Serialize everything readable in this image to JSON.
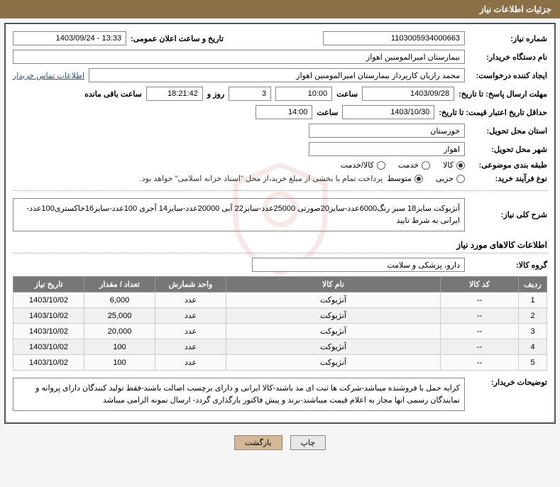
{
  "header": {
    "title": "جزئیات اطلاعات نیاز"
  },
  "fields": {
    "need_number": {
      "label": "شماره نیاز:",
      "value": "1103005934000663"
    },
    "announce_date": {
      "label": "تاریخ و ساعت اعلان عمومی:",
      "value": "13:33 - 1403/09/24"
    },
    "buyer_device": {
      "label": "نام دستگاه خریدار:",
      "value": "بیمارستان امیرالمومنین اهواز"
    },
    "requester": {
      "label": "ایجاد کننده درخواست:",
      "value": "محمد رازیان کارپرداز بیمارستان امیرالمومنین اهواز"
    },
    "contact_link": "اطلاعات تماس خریدار",
    "response_deadline": {
      "label": "مهلت ارسال پاسخ: تا تاریخ:",
      "date": "1403/09/28",
      "time_label": "ساعت",
      "time": "10:00",
      "days": "3",
      "days_label": "روز و",
      "hours": "18:21:42",
      "remaining_label": "ساعت باقی مانده"
    },
    "price_validity": {
      "label": "حداقل تاریخ اعتبار قیمت: تا تاریخ:",
      "date": "1403/10/30",
      "time_label": "ساعت",
      "time": "14:00"
    },
    "delivery_province": {
      "label": "استان محل تحویل:",
      "value": "خوزستان"
    },
    "delivery_city": {
      "label": "شهر محل تحویل:",
      "value": "اهواز"
    },
    "subject_class": {
      "label": "طبقه بندی موضوعی:",
      "options": [
        "کالا",
        "خدمت",
        "کالا/خدمت"
      ],
      "selected": 0
    },
    "purchase_type": {
      "label": "نوع فرآیند خرید:",
      "options": [
        "جزیی",
        "متوسط"
      ],
      "selected": 1,
      "note": "پرداخت تمام یا بخشی از مبلغ خرید،از محل \"اسناد خزانه اسلامی\" خواهد بود."
    },
    "need_desc": {
      "label": "شرح کلی نیاز:",
      "value": "آنژیوکت سایز18 سبز رنگ6000عدد-سایز20صورتی 25000عدد-سایز22 آبی 20000عدد-سایز14 آجری 100عدد-سایز16خاکستری100عدد-ایرانی به شرط تایید"
    },
    "goods_group": {
      "label": "گروه کالا:",
      "value": "دارو، پزشکی و سلامت"
    },
    "buyer_notes": {
      "label": "توضیحات خریدار:",
      "value": "کرایه حمل با فروشنده میباشد-شرکت ها ثبت ای مد باشند-کالا ایرانی و دارای برچسب اصالت باشند-فقط تولید کنندگان دارای پروانه و نمایندگان رسمی انها مجاز به اعلام قیمت میباشند-برند و پیش فاکتور بارگذاری گردد- ارسال نمونه الزامی میباشد"
    }
  },
  "goods_section_title": "اطلاعات کالاهای مورد نیاز",
  "table": {
    "headers": [
      "ردیف",
      "کد کالا",
      "نام کالا",
      "واحد شمارش",
      "تعداد / مقدار",
      "تاریخ نیاز"
    ],
    "rows": [
      [
        "1",
        "--",
        "آنژیوکت",
        "عدد",
        "6,000",
        "1403/10/02"
      ],
      [
        "2",
        "--",
        "آنژیوکت",
        "عدد",
        "25,000",
        "1403/10/02"
      ],
      [
        "3",
        "--",
        "آنژیوکت",
        "عدد",
        "20,000",
        "1403/10/02"
      ],
      [
        "4",
        "--",
        "آنژیوکت",
        "عدد",
        "100",
        "1403/10/02"
      ],
      [
        "5",
        "--",
        "آنژیوکت",
        "عدد",
        "100",
        "1403/10/02"
      ]
    ]
  },
  "buttons": {
    "print": "چاپ",
    "back": "بازگشت"
  },
  "colors": {
    "header_bg": "#8b6f47",
    "th_bg": "#777777",
    "btn_primary": "#d4b896"
  }
}
